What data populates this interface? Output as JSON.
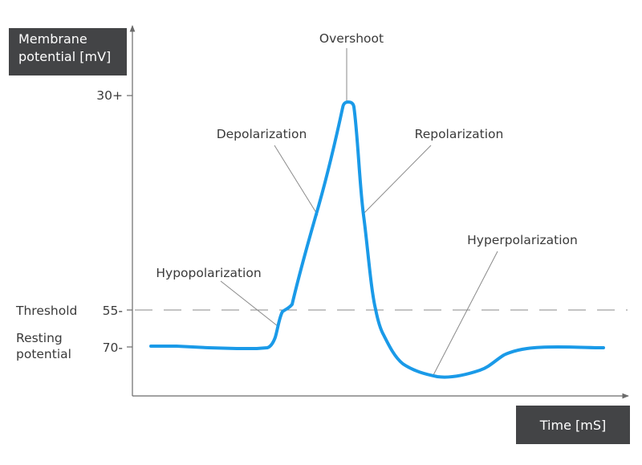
{
  "axes": {
    "y_label_line1": "Membrane",
    "y_label_line2": "potential [mV]",
    "x_label": "Time [mS]"
  },
  "ticks": {
    "t30": "30+",
    "t55": "55-",
    "t70": "70-"
  },
  "side_labels": {
    "threshold": "Threshold",
    "resting_line1": "Resting",
    "resting_line2": "potential"
  },
  "annotations": {
    "overshoot": "Overshoot",
    "depolarization": "Depolarization",
    "repolarization": "Repolarization",
    "hyperpolarization": "Hyperpolarization",
    "hypopolarization": "Hypopolarization"
  },
  "colors": {
    "curve": "#1a9ae8",
    "axis": "#6a6a6a",
    "label_box": "#434446",
    "text": "#3a3a3a"
  }
}
